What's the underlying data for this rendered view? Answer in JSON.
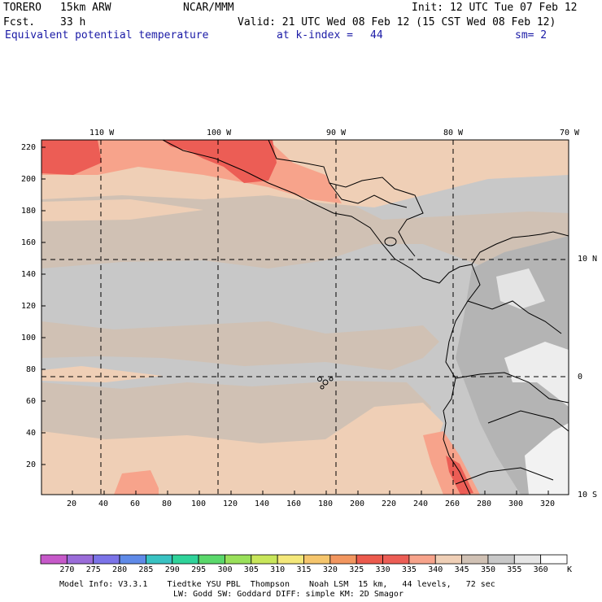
{
  "header": {
    "model": "TORERO",
    "resolution": "15km ARW",
    "center": "NCAR/MMM",
    "init_label": "Init: 12 UTC Tue 07 Feb 12",
    "fcst_label": "Fcst.",
    "fcst_hours": "33 h",
    "valid_label": "Valid: 21 UTC Wed 08 Feb 12 (15 CST Wed 08 Feb 12)",
    "field_title": "Equivalent potential temperature",
    "level_label": "at k-index =",
    "level_value": "44",
    "smooth_label": "sm= 2"
  },
  "map": {
    "lon_labels": [
      "110 W",
      "100 W",
      "90 W",
      "80 W",
      "70 W"
    ],
    "lat_labels": [
      "10 N",
      "0",
      "10 S"
    ],
    "y_ticks": [
      "220",
      "200",
      "180",
      "160",
      "140",
      "120",
      "100",
      "80",
      "60",
      "40",
      "20"
    ],
    "x_ticks": [
      "20",
      "40",
      "60",
      "80",
      "100",
      "120",
      "140",
      "160",
      "180",
      "200",
      "220",
      "240",
      "260",
      "280",
      "300",
      "320"
    ],
    "colors": {
      "ocean_base": "#c8c8c8",
      "band_tan": "#d0c1b4",
      "band_peach": "#efcfb6",
      "warm_salmon": "#f7a38b",
      "warm_red": "#ec5d55",
      "cool_gray": "#b4b4b4",
      "cold_white": "#ededed",
      "coast": "#000000",
      "grid": "#000000"
    }
  },
  "colorbar": {
    "unit": "K",
    "levels": [
      "270",
      "275",
      "280",
      "285",
      "290",
      "295",
      "300",
      "305",
      "310",
      "315",
      "320",
      "325",
      "330",
      "335",
      "340",
      "345",
      "350",
      "355",
      "360"
    ],
    "colors": [
      "#c659c9",
      "#9a6cd9",
      "#7b73e8",
      "#5f8ae8",
      "#39c2c2",
      "#2fd39a",
      "#5ad86b",
      "#99e05a",
      "#c8e65a",
      "#f4e87a",
      "#f5c56c",
      "#f2965f",
      "#ec5a4d",
      "#ec5d55",
      "#f7a38b",
      "#efcfb6",
      "#d0c1b4",
      "#c8c8c8",
      "#e6e6e6",
      "#ffffff"
    ]
  },
  "footer": {
    "line1": "Model Info: V3.3.1    Tiedtke YSU PBL  Thompson    Noah LSM  15 km,   44 levels,   72 sec",
    "line2": "LW: Godd SW: Goddard DIFF: simple KM: 2D Smagor"
  }
}
